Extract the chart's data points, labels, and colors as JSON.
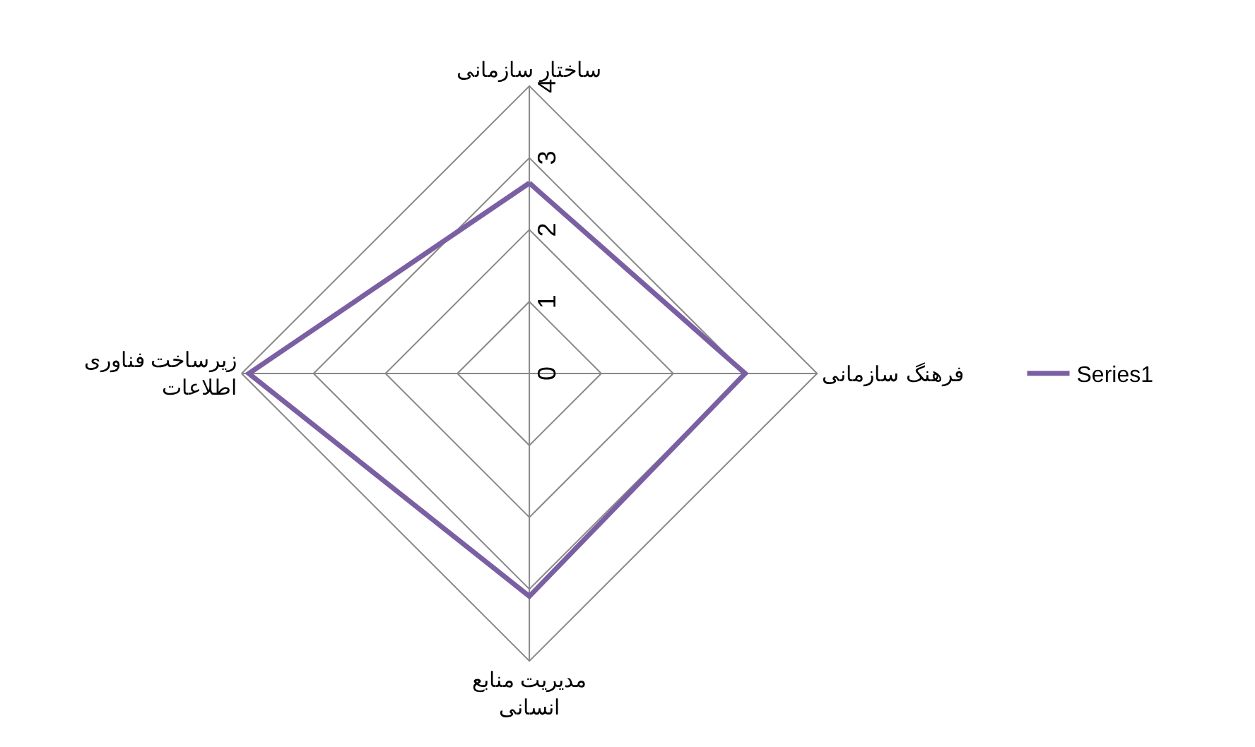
{
  "chart_data": {
    "type": "radar",
    "categories": [
      "ساختار سازمانی",
      "فرهنگ سازمانی",
      "مدیریت منابع\nانسانی",
      "زیرساخت فناوری\nاطلاعات"
    ],
    "series": [
      {
        "name": "Series1",
        "color": "#7b5fa3",
        "values": [
          2.65,
          3.0,
          3.1,
          3.9
        ]
      }
    ],
    "ylim": [
      0,
      4
    ],
    "yticks": [
      0,
      1,
      2,
      3,
      4
    ],
    "grid": true,
    "legend": "right",
    "marker": "none",
    "line_style": "solid"
  }
}
